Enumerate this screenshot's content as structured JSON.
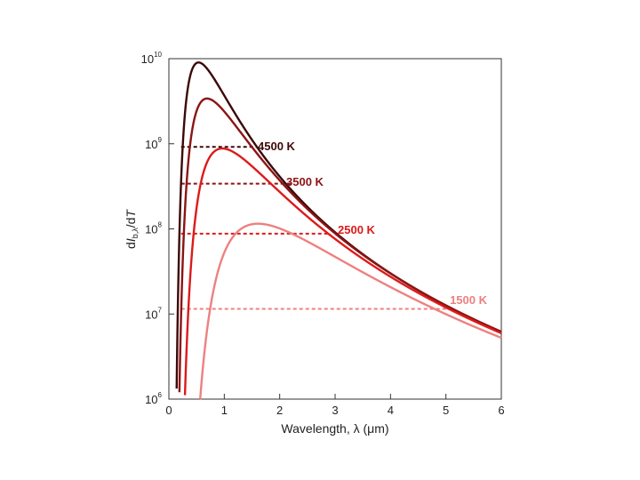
{
  "chart_data": {
    "type": "line",
    "xlabel": "Wavelength, λ (μm)",
    "ylabel": "dI_b,λ/dT",
    "xlim": [
      0,
      6
    ],
    "ylim": [
      1000000.0,
      10000000000.0
    ],
    "y_scale": "log",
    "grid": false,
    "x_ticks": [
      "0",
      "1",
      "2",
      "3",
      "4",
      "5",
      "6"
    ],
    "y_ticks": [
      {
        "base": "10",
        "exp": "6"
      },
      {
        "base": "10",
        "exp": "7"
      },
      {
        "base": "10",
        "exp": "8"
      },
      {
        "base": "10",
        "exp": "9"
      },
      {
        "base": "10",
        "exp": "10"
      }
    ],
    "series": [
      {
        "name": "4500 K",
        "temperature_K": 4500,
        "color": "#3d0808",
        "peak": {
          "x": 0.52,
          "y": 9000000000.0
        },
        "dashed_level": 920000000.0,
        "dashed_x_end": 1.6
      },
      {
        "name": "3500 K",
        "temperature_K": 3500,
        "color": "#8b1414",
        "peak": {
          "x": 0.69,
          "y": 3400000000.0
        },
        "dashed_level": 340000000.0,
        "dashed_x_end": 2.2
      },
      {
        "name": "2500 K",
        "temperature_K": 2500,
        "color": "#dd1a1a",
        "peak": {
          "x": 0.98,
          "y": 880000000.0
        },
        "dashed_level": 88000000.0,
        "dashed_x_end": 2.9
      },
      {
        "name": "1500 K",
        "temperature_K": 1500,
        "color": "#ee8080",
        "peak": {
          "x": 1.63,
          "y": 115000000.0
        },
        "dashed_level": 11500000.0,
        "dashed_x_end": 5.0
      }
    ]
  }
}
